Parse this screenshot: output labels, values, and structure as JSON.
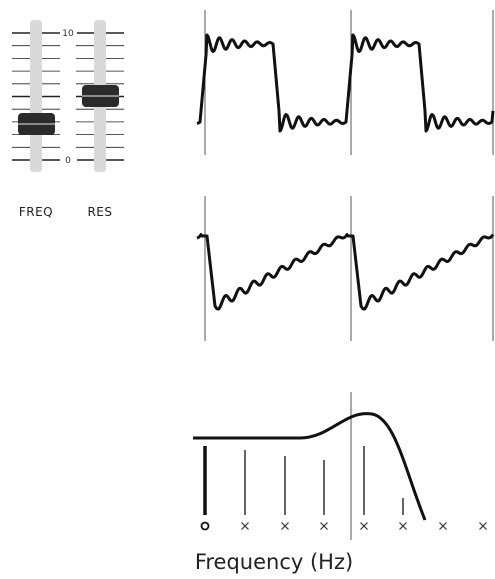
{
  "sliders": [
    {
      "label": "FREQ"
    },
    {
      "label": "RES"
    }
  ],
  "scale": {
    "max": 10,
    "min": 0
  },
  "axis_label": "Frequency (Hz)"
}
